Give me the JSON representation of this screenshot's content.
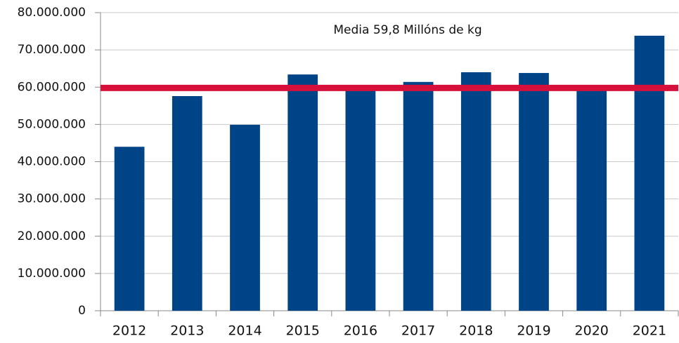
{
  "chart_data": {
    "type": "bar",
    "categories": [
      "2012",
      "2013",
      "2014",
      "2015",
      "2016",
      "2017",
      "2018",
      "2019",
      "2020",
      "2021"
    ],
    "values": [
      44000000,
      57600000,
      49900000,
      63400000,
      59500000,
      61400000,
      64000000,
      63800000,
      59300000,
      73800000
    ],
    "color": "#004488",
    "ylim": [
      0,
      80000000
    ],
    "yticks": [
      0,
      {
        "value": 10000000,
        "label": "10.000.000"
      },
      {
        "value": 20000000,
        "label": "20.000.000"
      },
      {
        "value": 30000000,
        "label": "30.000.000"
      },
      {
        "value": 40000000,
        "label": "40.000.000"
      },
      {
        "value": 50000000,
        "label": "50.000.000"
      },
      {
        "value": 60000000,
        "label": "60.000.000"
      },
      {
        "value": 70000000,
        "label": "70.000.000"
      },
      {
        "value": 80000000,
        "label": "80.000.000"
      }
    ],
    "grid": true,
    "reference_line": {
      "value": 59800000,
      "label": "Media 59,8 Millóns de kg",
      "color": "#d6103b"
    }
  }
}
